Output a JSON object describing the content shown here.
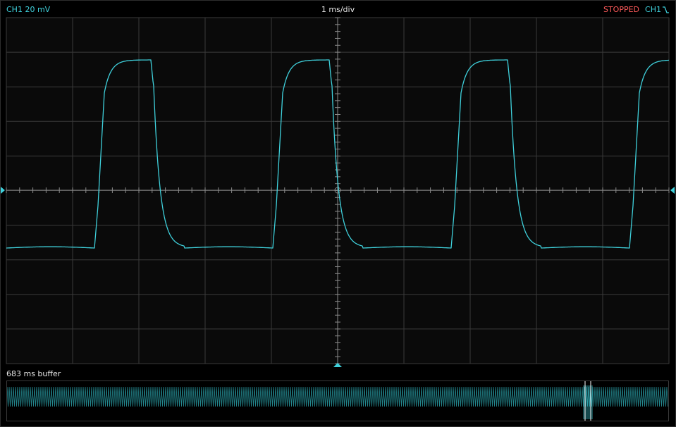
{
  "topbar": {
    "channel_scale": "CH1 20 mV",
    "timebase": "1 ms/div",
    "status": "STOPPED",
    "trigger_channel": "CH1",
    "trigger_edge_icon": "falling-edge-icon"
  },
  "buffer": {
    "label": "683 ms buffer"
  },
  "colors": {
    "trace": "#3fd1dc",
    "grid": "#3a3a3a",
    "axis": "#8a8a8a",
    "status": "#ff5a5a",
    "text": "#e6e6e6"
  }
}
